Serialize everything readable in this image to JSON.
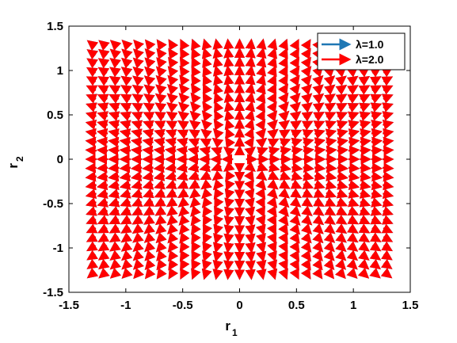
{
  "chart_data": {
    "type": "quiver",
    "xlabel": "r",
    "xlabel_sub": "1",
    "ylabel": "r",
    "ylabel_sub": "2",
    "xlim": [
      -1.5,
      1.5
    ],
    "ylim": [
      -1.5,
      1.5
    ],
    "xticks": [
      "-1.5",
      "-1",
      "-0.5",
      "0",
      "0.5",
      "1",
      "1.5"
    ],
    "yticks": [
      "-1.5",
      "-1",
      "-0.5",
      "0",
      "0.5",
      "1",
      "1.5"
    ],
    "grid": false,
    "legend_position": "top-right",
    "legend": [
      {
        "label": "λ=1.0",
        "color": "#1f77b4"
      },
      {
        "label": "λ=2.0",
        "color": "#ff0000"
      }
    ],
    "series": [
      {
        "name": "λ=1.0",
        "lambda": 1.0,
        "color": "#1f77b4",
        "grid_step": 0.1,
        "region_halfwidth": 1.25,
        "field": "radial"
      },
      {
        "name": "λ=2.0",
        "lambda": 2.0,
        "color": "#ff0000",
        "grid_step": 0.1,
        "region_halfwidth": 1.25,
        "field": "radial"
      }
    ]
  }
}
